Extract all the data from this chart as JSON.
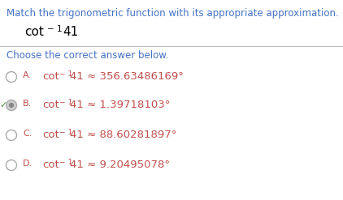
{
  "title": "Match the trigonometric function with its appropriate approximation.",
  "subtitle": "Choose the correct answer below.",
  "options": [
    {
      "label": "A.",
      "value": "356.63486169",
      "selected": false
    },
    {
      "label": "B.",
      "value": "1.39718103",
      "selected": true
    },
    {
      "label": "C.",
      "value": "88.60281897",
      "selected": false
    },
    {
      "label": "D.",
      "value": "9.20495078",
      "selected": false
    }
  ],
  "bg_color": "#ffffff",
  "title_color": "#4472c4",
  "subtitle_color": "#4472c4",
  "option_label_color": "#c0504d",
  "option_text_color": "#c0504d",
  "radio_unsel_color": "#aaaaaa",
  "radio_sel_color": "#aaaaaa",
  "check_color": "#4a8a4a",
  "divider_color": "#bbbbbb",
  "title_fontsize": 8.5,
  "subtitle_fontsize": 8.5,
  "question_cot_fontsize": 11,
  "question_sup_fontsize": 7.5,
  "option_cot_fontsize": 9.5,
  "option_sup_fontsize": 6.5,
  "option_label_fontsize": 8.0,
  "option_value_fontsize": 9.5
}
